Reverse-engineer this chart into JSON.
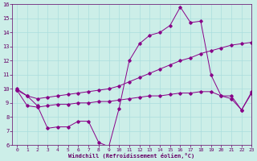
{
  "bg_color": "#cceee8",
  "line_color": "#880088",
  "grid_color": "#aadddd",
  "xlabel": "Windchill (Refroidissement éolien,°C)",
  "xlabel_color": "#660066",
  "tick_color": "#660066",
  "ylim": [
    6,
    16
  ],
  "xlim": [
    -0.5,
    23
  ],
  "yticks": [
    6,
    7,
    8,
    9,
    10,
    11,
    12,
    13,
    14,
    15,
    16
  ],
  "xticks": [
    0,
    1,
    2,
    3,
    4,
    5,
    6,
    7,
    8,
    9,
    10,
    11,
    12,
    13,
    14,
    15,
    16,
    17,
    18,
    19,
    20,
    21,
    22,
    23
  ],
  "line1_x": [
    0,
    1,
    2,
    3,
    4,
    5,
    6,
    7,
    8,
    9,
    10,
    11,
    12,
    13,
    14,
    15,
    16,
    17,
    18,
    19,
    20,
    21,
    22,
    23
  ],
  "line1_y": [
    10.0,
    9.5,
    8.8,
    7.2,
    7.3,
    7.3,
    7.7,
    7.7,
    6.2,
    5.9,
    8.6,
    12.0,
    13.2,
    13.8,
    14.0,
    14.5,
    15.8,
    14.7,
    14.8,
    11.0,
    9.5,
    9.5,
    8.5,
    9.8
  ],
  "line2_x": [
    0,
    1,
    2,
    3,
    4,
    5,
    6,
    7,
    8,
    9,
    10,
    11,
    12,
    13,
    14,
    15,
    16,
    17,
    18,
    19,
    20,
    21,
    22,
    23
  ],
  "line2_y": [
    9.9,
    9.5,
    9.3,
    9.4,
    9.5,
    9.6,
    9.7,
    9.8,
    9.9,
    10.0,
    10.2,
    10.5,
    10.8,
    11.1,
    11.4,
    11.7,
    12.0,
    12.2,
    12.5,
    12.7,
    12.9,
    13.1,
    13.2,
    13.3
  ],
  "line3_x": [
    0,
    1,
    2,
    3,
    4,
    5,
    6,
    7,
    8,
    9,
    10,
    11,
    12,
    13,
    14,
    15,
    16,
    17,
    18,
    19,
    20,
    21,
    22,
    23
  ],
  "line3_y": [
    9.9,
    8.8,
    8.7,
    8.8,
    8.9,
    8.9,
    9.0,
    9.0,
    9.1,
    9.1,
    9.2,
    9.3,
    9.4,
    9.5,
    9.5,
    9.6,
    9.7,
    9.7,
    9.8,
    9.8,
    9.5,
    9.3,
    8.5,
    9.7
  ]
}
